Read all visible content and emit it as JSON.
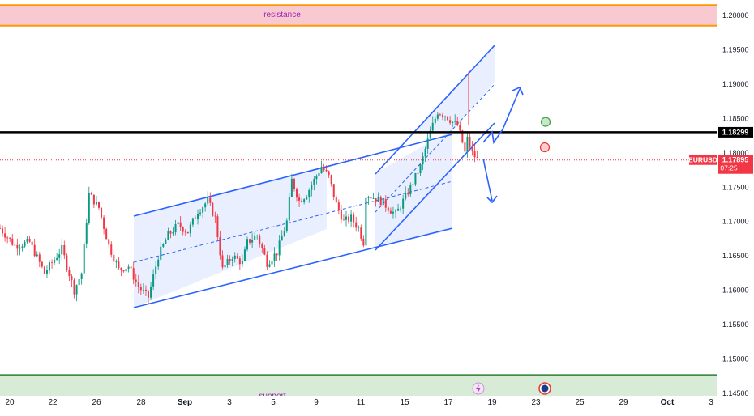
{
  "symbol": "EURUSD",
  "current_price": "1.17895",
  "countdown": "07:25",
  "key_level_label": "1.18299",
  "colors": {
    "bull": "#089981",
    "bear": "#f23645",
    "channel": "#2962ff",
    "resistance_fill": "#f8c9d0",
    "resistance_border": "#ff9800",
    "support_fill": "#d7ebd7",
    "support_border": "#2e7d32",
    "key_line": "#000000",
    "zone_text": "#9c27b0"
  },
  "zones": {
    "resistance_label": "resistance",
    "support_label": "support"
  },
  "chart_data": {
    "type": "candlestick",
    "instrument": "EURUSD",
    "y_axis": {
      "ticks": [
        "1.20000",
        "1.19500",
        "1.19000",
        "1.18500",
        "1.18000",
        "1.17500",
        "1.17000",
        "1.16500",
        "1.16000",
        "1.15500",
        "1.15000",
        "1.14500"
      ],
      "range": [
        1.1445,
        1.202
      ]
    },
    "x_axis": {
      "ticks": [
        "20",
        "22",
        "26",
        "28",
        "Sep",
        "3",
        "5",
        "9",
        "11",
        "15",
        "17",
        "19",
        "23",
        "25",
        "29",
        "Oct",
        "3"
      ]
    },
    "price_path": [
      [
        0.0,
        1.169
      ],
      [
        6.0,
        1.1665
      ],
      [
        12.0,
        1.167
      ],
      [
        18.0,
        1.1625
      ],
      [
        25.0,
        1.166
      ],
      [
        30.0,
        1.16
      ],
      [
        33.0,
        1.1625
      ],
      [
        36.0,
        1.174
      ],
      [
        40.0,
        1.172
      ],
      [
        44.0,
        1.1665
      ],
      [
        48.0,
        1.163
      ],
      [
        52.0,
        1.1635
      ],
      [
        56.0,
        1.1605
      ],
      [
        60.0,
        1.159
      ],
      [
        64.0,
        1.165
      ],
      [
        68.0,
        1.168
      ],
      [
        72.0,
        1.1695
      ],
      [
        76.0,
        1.1685
      ],
      [
        80.0,
        1.1715
      ],
      [
        84.0,
        1.173
      ],
      [
        87.0,
        1.1705
      ],
      [
        90.0,
        1.163
      ],
      [
        94.0,
        1.165
      ],
      [
        98.0,
        1.164
      ],
      [
        100.0,
        1.167
      ],
      [
        104.0,
        1.168
      ],
      [
        108.0,
        1.164
      ],
      [
        112.0,
        1.1655
      ],
      [
        116.0,
        1.17
      ],
      [
        118.0,
        1.176
      ],
      [
        121.0,
        1.173
      ],
      [
        124.0,
        1.174
      ],
      [
        127.0,
        1.176
      ],
      [
        130.0,
        1.178
      ],
      [
        133.0,
        1.1765
      ],
      [
        136.0,
        1.1725
      ],
      [
        139.0,
        1.17
      ],
      [
        142.0,
        1.1705
      ],
      [
        145.0,
        1.169
      ],
      [
        147.0,
        1.167
      ],
      [
        148.0,
        1.174
      ],
      [
        151.0,
        1.1735
      ],
      [
        154.0,
        1.173
      ],
      [
        157.0,
        1.172
      ],
      [
        160.0,
        1.171
      ],
      [
        163.0,
        1.173
      ],
      [
        166.0,
        1.175
      ],
      [
        170.0,
        1.178
      ],
      [
        174.0,
        1.183
      ],
      [
        177.0,
        1.186
      ],
      [
        180.0,
        1.1855
      ],
      [
        183.0,
        1.1845
      ],
      [
        185.0,
        1.184
      ],
      [
        187.0,
        1.1815
      ],
      [
        188.0,
        1.18
      ],
      [
        189.0,
        1.182
      ],
      [
        191.0,
        1.18
      ],
      [
        193.0,
        1.179
      ]
    ],
    "levels": {
      "resistance_zone": [
        1.1985,
        1.2015
      ],
      "key_level": 1.18299,
      "current": 1.17895,
      "support_zone": [
        1.144,
        1.1477
      ]
    },
    "projection": {
      "up_target": 1.19,
      "down_target": 1.173
    },
    "signals": [
      {
        "kind": "green",
        "price": 1.1845
      },
      {
        "kind": "red",
        "price": 1.1808
      }
    ]
  }
}
